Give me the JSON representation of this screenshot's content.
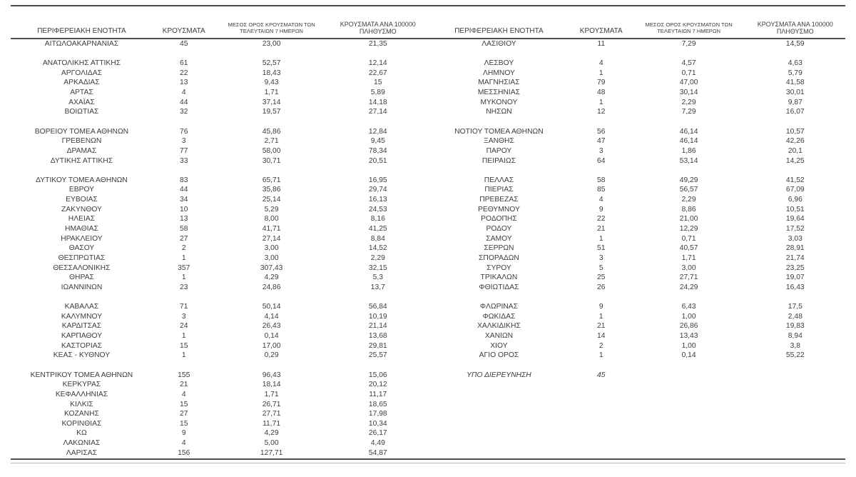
{
  "colors": {
    "background": "#ffffff",
    "text": "#3d3d3f",
    "rule_dark": "#4d4e50",
    "rule_light": "#b9b9ba"
  },
  "columns": [
    "ΠΕΡΙΦΕΡΕΙΑΚΗ ΕΝΟΤΗΤΑ",
    "ΚΡΟΥΣΜΑΤΑ",
    "ΜΕΣΟΣ ΟΡΟΣ ΚΡΟΥΣΜΑΤΩΝ ΤΩΝ ΤΕΛΕΥΤΑΙΩΝ 7 ΗΜΕΡΩΝ",
    "ΚΡΟΥΣΜΑΤΑ ΑΝΑ 100000 ΠΛΗΘΥΣΜΟ"
  ],
  "tables": [
    {
      "name": "left",
      "rows": [
        [
          "ΑΙΤΩΛΟΑΚΑΡΝΑΝΙΑΣ",
          "45",
          "23,00",
          "21,35"
        ],
        null,
        [
          "ΑΝΑΤΟΛΙΚΗΣ ΑΤΤΙΚΗΣ",
          "61",
          "52,57",
          "12,14"
        ],
        [
          "ΑΡΓΟΛΙΔΑΣ",
          "22",
          "18,43",
          "22,67"
        ],
        [
          "ΑΡΚΑΔΙΑΣ",
          "13",
          "9,43",
          "15"
        ],
        [
          "ΑΡΤΑΣ",
          "4",
          "1,71",
          "5,89"
        ],
        [
          "ΑΧΑΪΑΣ",
          "44",
          "37,14",
          "14,18"
        ],
        [
          "ΒΟΙΩΤΙΑΣ",
          "32",
          "19,57",
          "27,14"
        ],
        null,
        [
          "ΒΟΡΕΙΟΥ ΤΟΜΕΑ ΑΘΗΝΩΝ",
          "76",
          "45,86",
          "12,84"
        ],
        [
          "ΓΡΕΒΕΝΩΝ",
          "3",
          "2,71",
          "9,45"
        ],
        [
          "ΔΡΑΜΑΣ",
          "77",
          "58,00",
          "78,34"
        ],
        [
          "ΔΥΤΙΚΗΣ ΑΤΤΙΚΗΣ",
          "33",
          "30,71",
          "20,51"
        ],
        null,
        [
          "ΔΥΤΙΚΟΥ ΤΟΜΕΑ ΑΘΗΝΩΝ",
          "83",
          "65,71",
          "16,95"
        ],
        [
          "ΕΒΡΟΥ",
          "44",
          "35,86",
          "29,74"
        ],
        [
          "ΕΥΒΟΙΑΣ",
          "34",
          "25,14",
          "16,13"
        ],
        [
          "ΖΑΚΥΝΘΟΥ",
          "10",
          "5,29",
          "24,53"
        ],
        [
          "ΗΛΕΙΑΣ",
          "13",
          "8,00",
          "8,16"
        ],
        [
          "ΗΜΑΘΙΑΣ",
          "58",
          "41,71",
          "41,25"
        ],
        [
          "ΗΡΑΚΛΕΙΟΥ",
          "27",
          "27,14",
          "8,84"
        ],
        [
          "ΘΑΣΟΥ",
          "2",
          "3,00",
          "14,52"
        ],
        [
          "ΘΕΣΠΡΩΤΙΑΣ",
          "1",
          "3,00",
          "2,29"
        ],
        [
          "ΘΕΣΣΑΛΟΝΙΚΗΣ",
          "357",
          "307,43",
          "32,15"
        ],
        [
          "ΘΗΡΑΣ",
          "1",
          "4,29",
          "5,3"
        ],
        [
          "ΙΩΑΝΝΙΝΩΝ",
          "23",
          "24,86",
          "13,7"
        ],
        null,
        [
          "ΚΑΒΑΛΑΣ",
          "71",
          "50,14",
          "56,84"
        ],
        [
          "ΚΑΛΥΜΝΟΥ",
          "3",
          "4,14",
          "10,19"
        ],
        [
          "ΚΑΡΔΙΤΣΑΣ",
          "24",
          "26,43",
          "21,14"
        ],
        [
          "ΚΑΡΠΑΘΟΥ",
          "1",
          "0,14",
          "13,68"
        ],
        [
          "ΚΑΣΤΟΡΙΑΣ",
          "15",
          "17,00",
          "29,81"
        ],
        [
          "ΚΕΑΣ - ΚΥΘΝΟΥ",
          "1",
          "0,29",
          "25,57"
        ],
        null,
        [
          "ΚΕΝΤΡΙΚΟΥ ΤΟΜΕΑ ΑΘΗΝΩΝ",
          "155",
          "96,43",
          "15,06"
        ],
        [
          "ΚΕΡΚΥΡΑΣ",
          "21",
          "18,14",
          "20,12"
        ],
        [
          "ΚΕΦΑΛΛΗΝΙΑΣ",
          "4",
          "1,71",
          "11,17"
        ],
        [
          "ΚΙΛΚΙΣ",
          "15",
          "26,71",
          "18,65"
        ],
        [
          "ΚΟΖΑΝΗΣ",
          "27",
          "27,71",
          "17,98"
        ],
        [
          "ΚΟΡΙΝΘΙΑΣ",
          "15",
          "11,71",
          "10,34"
        ],
        [
          "ΚΩ",
          "9",
          "4,29",
          "26,17"
        ],
        [
          "ΛΑΚΩΝΙΑΣ",
          "4",
          "5,00",
          "4,49"
        ],
        [
          "ΛΑΡΙΣΑΣ",
          "156",
          "127,71",
          "54,87"
        ]
      ]
    },
    {
      "name": "right",
      "rows": [
        [
          "ΛΑΣΙΘΙΟΥ",
          "11",
          "7,29",
          "14,59"
        ],
        null,
        [
          "ΛΕΣΒΟΥ",
          "4",
          "4,57",
          "4,63"
        ],
        [
          "ΛΗΜΝΟΥ",
          "1",
          "0,71",
          "5,79"
        ],
        [
          "ΜΑΓΝΗΣΙΑΣ",
          "79",
          "47,00",
          "41,58"
        ],
        [
          "ΜΕΣΣΗΝΙΑΣ",
          "48",
          "30,14",
          "30,01"
        ],
        [
          "ΜΥΚΟΝΟΥ",
          "1",
          "2,29",
          "9,87"
        ],
        [
          "ΝΗΣΩΝ",
          "12",
          "7,29",
          "16,07"
        ],
        null,
        [
          "ΝΟΤΙΟΥ ΤΟΜΕΑ ΑΘΗΝΩΝ",
          "56",
          "46,14",
          "10,57"
        ],
        [
          "ΞΑΝΘΗΣ",
          "47",
          "46,14",
          "42,26"
        ],
        [
          "ΠΑΡΟΥ",
          "3",
          "1,86",
          "20,1"
        ],
        [
          "ΠΕΙΡΑΙΩΣ",
          "64",
          "53,14",
          "14,25"
        ],
        null,
        [
          "ΠΕΛΛΑΣ",
          "58",
          "49,29",
          "41,52"
        ],
        [
          "ΠΙΕΡΙΑΣ",
          "85",
          "56,57",
          "67,09"
        ],
        [
          "ΠΡΕΒΕΖΑΣ",
          "4",
          "2,29",
          "6,96"
        ],
        [
          "ΡΕΘΥΜΝΟΥ",
          "9",
          "8,86",
          "10,51"
        ],
        [
          "ΡΟΔΟΠΗΣ",
          "22",
          "21,00",
          "19,64"
        ],
        [
          "ΡΟΔΟΥ",
          "21",
          "12,29",
          "17,52"
        ],
        [
          "ΣΑΜΟΥ",
          "1",
          "0,71",
          "3,03"
        ],
        [
          "ΣΕΡΡΩΝ",
          "51",
          "40,57",
          "28,91"
        ],
        [
          "ΣΠΟΡΑΔΩΝ",
          "3",
          "1,71",
          "21,74"
        ],
        [
          "ΣΥΡΟΥ",
          "5",
          "3,00",
          "23,25"
        ],
        [
          "ΤΡΙΚΑΛΩΝ",
          "25",
          "27,71",
          "19,07"
        ],
        [
          "ΦΘΙΩΤΙΔΑΣ",
          "26",
          "24,29",
          "16,43"
        ],
        null,
        [
          "ΦΛΩΡΙΝΑΣ",
          "9",
          "6,43",
          "17,5"
        ],
        [
          "ΦΩΚΙΔΑΣ",
          "1",
          "1,00",
          "2,48"
        ],
        [
          "ΧΑΛΚΙΔΙΚΗΣ",
          "21",
          "26,86",
          "19,83"
        ],
        [
          "ΧΑΝΙΩΝ",
          "14",
          "13,43",
          "8,94"
        ],
        [
          "ΧΙΟΥ",
          "2",
          "1,00",
          "3,8"
        ],
        [
          "ΑΓΙΟ ΟΡΟΣ",
          "1",
          "0,14",
          "55,22"
        ],
        null,
        {
          "cells": [
            "ΥΠΟ ΔΙΕΡΕΥΝΗΣΗ",
            "45",
            "",
            ""
          ],
          "italic": true
        }
      ]
    }
  ]
}
